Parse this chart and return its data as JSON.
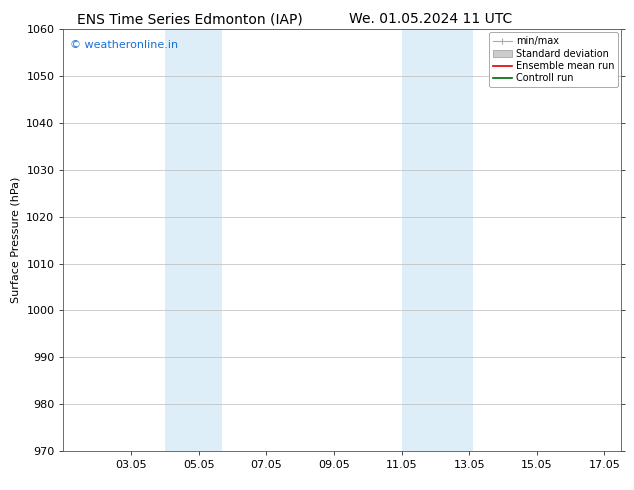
{
  "title_left": "ENS Time Series Edmonton (IAP)",
  "title_right": "We. 01.05.2024 11 UTC",
  "ylabel": "Surface Pressure (hPa)",
  "ylim": [
    970,
    1060
  ],
  "yticks": [
    970,
    980,
    990,
    1000,
    1010,
    1020,
    1030,
    1040,
    1050,
    1060
  ],
  "xlim": [
    1.0,
    17.5
  ],
  "xtick_labels": [
    "03.05",
    "05.05",
    "07.05",
    "09.05",
    "11.05",
    "13.05",
    "15.05",
    "17.05"
  ],
  "xtick_positions": [
    3,
    5,
    7,
    9,
    11,
    13,
    15,
    17
  ],
  "shaded_bands": [
    {
      "x_start": 4.0,
      "x_end": 5.7,
      "color": "#ddeef8"
    },
    {
      "x_start": 11.0,
      "x_end": 13.1,
      "color": "#ddeef8"
    }
  ],
  "watermark_text": "© weatheronline.in",
  "watermark_color": "#1a6fd4",
  "watermark_fontsize": 8,
  "background_color": "#ffffff",
  "plot_bg_color": "#ffffff",
  "grid_color": "#bbbbbb",
  "title_fontsize": 10,
  "axis_label_fontsize": 8,
  "tick_fontsize": 8
}
